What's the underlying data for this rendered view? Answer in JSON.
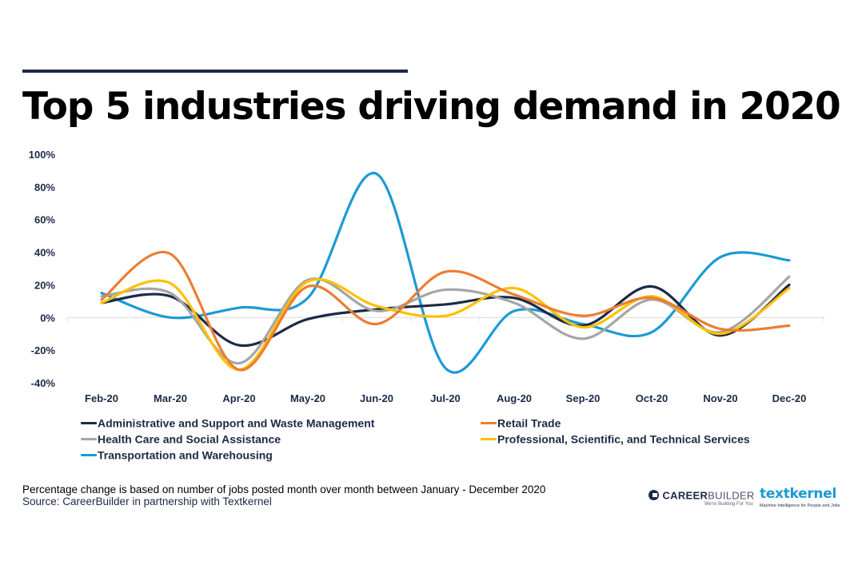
{
  "header": {
    "title": "Top 5 industries driving demand in 2020"
  },
  "chart_data": {
    "type": "line",
    "title": "Top 5 industries driving demand in 2020",
    "xlabel": "",
    "ylabel": "",
    "smooth": true,
    "categories": [
      "Feb-20",
      "Mar-20",
      "Apr-20",
      "May-20",
      "Jun-20",
      "Jul-20",
      "Aug-20",
      "Sep-20",
      "Oct-20",
      "Nov-20",
      "Dec-20"
    ],
    "y_ticks": [
      100,
      80,
      60,
      40,
      20,
      0,
      -20,
      -40
    ],
    "y_tick_labels": [
      "100%",
      "80%",
      "60%",
      "40%",
      "20%",
      "0%",
      "-20%",
      "-40%"
    ],
    "ylim": [
      -40,
      100
    ],
    "grid": false,
    "legend_position": "bottom",
    "series": [
      {
        "name": "Administrative and Support and Waste Management",
        "color": "#1b2a47",
        "values": [
          9,
          13,
          -17,
          -1,
          5,
          8,
          12,
          -5,
          19,
          -11,
          20
        ]
      },
      {
        "name": "Retail Trade",
        "color": "#ed7d31",
        "values": [
          11,
          39,
          -32,
          19,
          -4,
          28,
          14,
          1,
          12,
          -7,
          -5
        ]
      },
      {
        "name": "Health Care and Social Assistance",
        "color": "#a5a5a5",
        "values": [
          13,
          15,
          -28,
          23,
          4,
          17,
          9,
          -13,
          11,
          -9,
          25
        ]
      },
      {
        "name": "Professional, Scientific, and Technical Services",
        "color": "#ffc000",
        "values": [
          9,
          21,
          -32,
          22,
          7,
          1,
          18,
          -6,
          13,
          -10,
          18
        ]
      },
      {
        "name": "Transportation and Warehousing",
        "color": "#1a9ad6",
        "values": [
          15,
          0,
          6,
          12,
          88,
          -31,
          4,
          -4,
          -9,
          37,
          35
        ]
      }
    ]
  },
  "footer": {
    "note": "Percentage change is based on number of jobs posted month over month between January - December 2020",
    "source": "Source: CareerBuilder in partnership with Textkernel"
  },
  "logos": {
    "careerbuilder_bold": "CAREER",
    "careerbuilder_light": "BUILDER",
    "careerbuilder_tagline": "We're Building For You",
    "textkernel": "textkernel",
    "textkernel_tagline": "Machine Intelligence for People and Jobs"
  }
}
